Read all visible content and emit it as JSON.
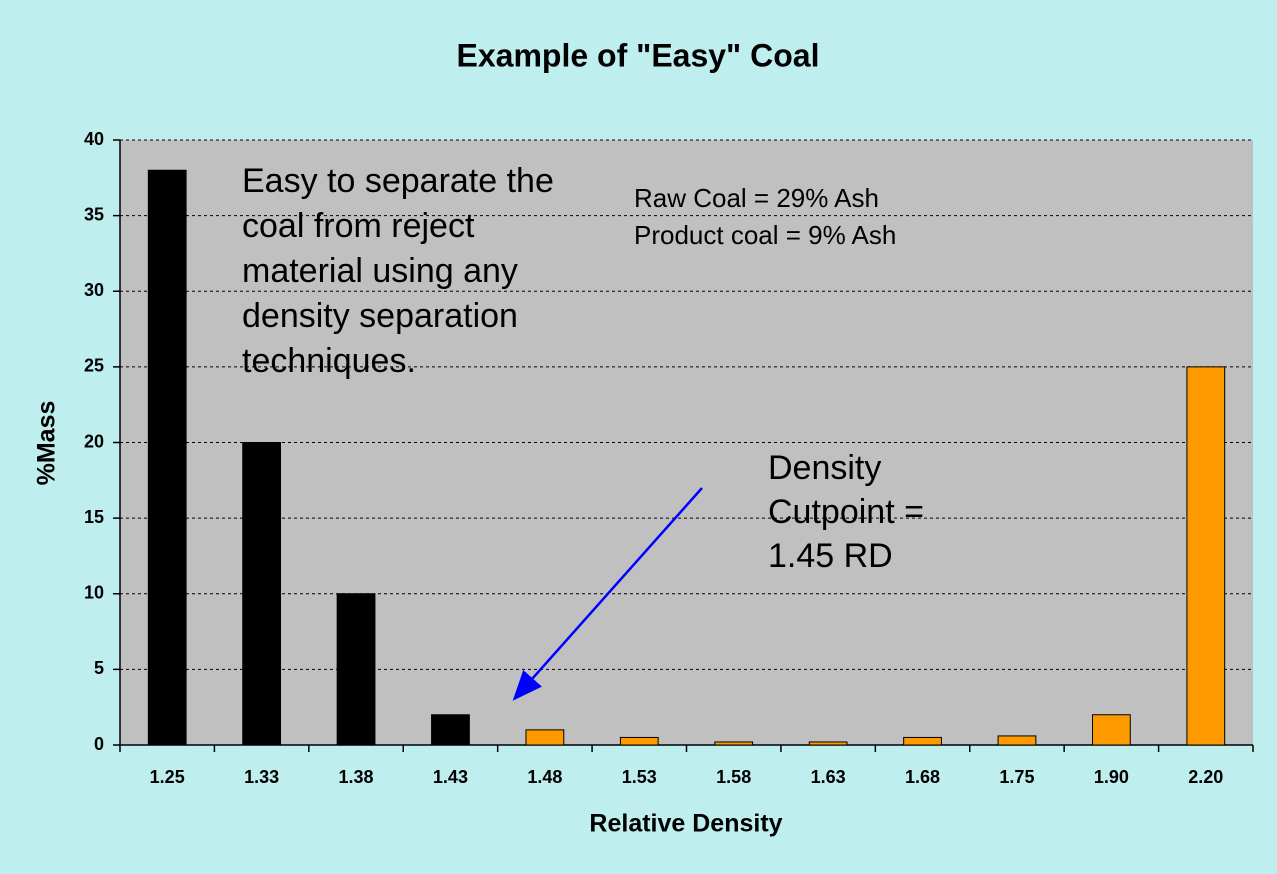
{
  "chart_data": {
    "type": "bar",
    "title": "Example of \"Easy\" Coal",
    "xlabel": "Relative Density",
    "ylabel": "%Mass",
    "categories": [
      "1.25",
      "1.33",
      "1.38",
      "1.43",
      "1.48",
      "1.53",
      "1.58",
      "1.63",
      "1.68",
      "1.75",
      "1.90",
      "2.20"
    ],
    "values": [
      38,
      20,
      10,
      2,
      1,
      0.5,
      0.2,
      0.2,
      0.5,
      0.6,
      2,
      25
    ],
    "colors": [
      "#000000",
      "#000000",
      "#000000",
      "#000000",
      "#ff9900",
      "#ff9900",
      "#ff9900",
      "#ff9900",
      "#ff9900",
      "#ff9900",
      "#ff9900",
      "#ff9900"
    ],
    "ylim": [
      0,
      40
    ],
    "yticks": [
      0,
      5,
      10,
      15,
      20,
      25,
      30,
      35,
      40
    ],
    "grid": true,
    "annotations": [
      {
        "lines": [
          "Easy to separate the",
          "coal from reject",
          "material using any",
          "density separation",
          "techniques."
        ]
      },
      {
        "lines": [
          "Raw Coal = 29% Ash",
          "Product coal = 9% Ash"
        ]
      },
      {
        "lines": [
          "Density",
          "Cutpoint =",
          "1.45 RD"
        ]
      }
    ]
  }
}
